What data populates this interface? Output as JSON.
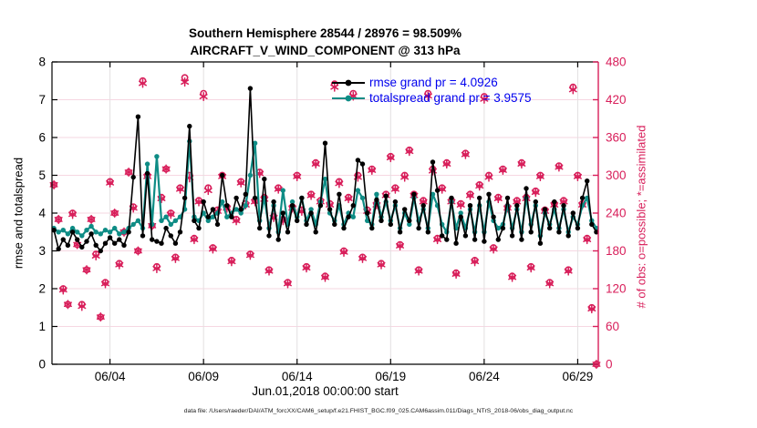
{
  "figure": {
    "title_line1": "Southern Hemisphere 28544 / 28976 = 98.509%",
    "title_line2": "AIRCRAFT_V_WIND_COMPONENT @ 313 hPa",
    "xlabel": "Jun.01,2018 00:00:00 start",
    "ylabel_left": "rmse and totalspread",
    "ylabel_right": "# of obs: o=possible; *=assimilated",
    "footer": "data file: /Users/raeder/DAI/ATM_forcXX/CAM6_setup/f.e21.FHIST_BGC.f09_025.CAM6assim.011/Diags_NTrS_2018-06/obs_diag_output.nc",
    "legend": [
      {
        "label": "rmse grand pr = 4.0926",
        "color": "#000000"
      },
      {
        "label": "totalspread grand pr = 3.9575",
        "color": "#0e8c85"
      }
    ],
    "colors": {
      "rmse": "#000000",
      "totalspread": "#0e8c85",
      "obs": "#d81e5a",
      "legend_text": "#0000ee",
      "grid_horizontal": "#f6d7e2",
      "grid_vertical": "#e3e0e1",
      "axis_left": "#000000",
      "axis_right": "#d81e5a"
    }
  },
  "chart_data": {
    "type": "line",
    "title": "Southern Hemisphere 28544 / 28976 = 98.509% | AIRCRAFT_V_WIND_COMPONENT @ 313 hPa",
    "xlabel": "Jun.01,2018 00:00:00 start",
    "ylabel_left": "rmse and totalspread",
    "ylabel_right": "# of obs: o=possible; *=assimilated",
    "grid": true,
    "legend_position": "top-right-inside",
    "time_days_start": 0,
    "time_days_step": 0.25,
    "xlim_days": [
      -0.1,
      29.1
    ],
    "x_tick_days": [
      3,
      8,
      13,
      18,
      23,
      28
    ],
    "x_tick_labels": [
      "06/04",
      "06/09",
      "06/14",
      "06/19",
      "06/24",
      "06/29"
    ],
    "ylim_left": [
      0,
      8
    ],
    "yticks_left": [
      0,
      1,
      2,
      3,
      4,
      5,
      6,
      7,
      8
    ],
    "ylim_right": [
      0,
      480
    ],
    "yticks_right": [
      0,
      60,
      120,
      180,
      240,
      300,
      360,
      420,
      480
    ],
    "series": [
      {
        "name": "rmse",
        "axis": "left",
        "style": "line",
        "marker": "filled-circle",
        "color": "#000000",
        "grand_pr": 4.0926,
        "values": [
          3.55,
          3.05,
          3.3,
          3.15,
          3.5,
          3.3,
          3.1,
          3.25,
          3.45,
          3.15,
          3.0,
          3.2,
          3.35,
          3.2,
          3.3,
          3.15,
          3.5,
          4.95,
          6.55,
          3.4,
          5.05,
          3.3,
          3.25,
          3.2,
          3.6,
          3.4,
          3.2,
          3.5,
          4.4,
          6.3,
          3.8,
          3.6,
          4.3,
          3.9,
          4.1,
          3.7,
          5.0,
          4.2,
          3.9,
          4.4,
          4.1,
          4.5,
          7.3,
          4.4,
          3.6,
          4.9,
          3.4,
          4.3,
          3.3,
          4.0,
          3.5,
          4.2,
          3.8,
          4.4,
          3.7,
          4.0,
          3.5,
          4.2,
          5.85,
          4.1,
          3.7,
          4.5,
          3.6,
          3.9,
          4.2,
          5.4,
          5.3,
          4.0,
          3.6,
          4.35,
          3.8,
          4.45,
          3.7,
          4.3,
          3.5,
          4.1,
          3.8,
          4.5,
          3.6,
          4.2,
          3.5,
          5.35,
          4.6,
          3.4,
          3.3,
          4.4,
          3.2,
          3.9,
          3.4,
          4.2,
          3.3,
          4.4,
          3.25,
          4.5,
          3.9,
          3.3,
          3.6,
          4.4,
          3.4,
          4.2,
          3.3,
          4.65,
          3.5,
          4.3,
          3.2,
          4.1,
          3.6,
          4.3,
          3.5,
          4.2,
          3.4,
          4.0,
          3.6,
          4.4,
          4.85,
          3.7,
          3.5
        ]
      },
      {
        "name": "totalspread",
        "axis": "left",
        "style": "line",
        "marker": "filled-circle",
        "color": "#0e8c85",
        "grand_pr": 3.9575,
        "values": [
          3.6,
          3.5,
          3.55,
          3.45,
          3.6,
          3.5,
          3.4,
          3.55,
          3.65,
          3.5,
          3.45,
          3.55,
          3.5,
          3.6,
          3.45,
          3.5,
          3.6,
          3.7,
          3.8,
          3.6,
          5.3,
          3.7,
          5.5,
          3.8,
          3.9,
          3.7,
          3.8,
          3.9,
          4.1,
          5.9,
          3.9,
          3.8,
          4.0,
          3.8,
          3.9,
          4.0,
          4.3,
          3.9,
          4.0,
          4.1,
          4.0,
          4.2,
          5.0,
          5.85,
          3.8,
          4.4,
          3.6,
          4.2,
          3.5,
          4.6,
          3.7,
          4.3,
          3.9,
          4.4,
          3.8,
          4.1,
          3.7,
          4.3,
          4.9,
          4.0,
          3.8,
          4.2,
          3.7,
          4.0,
          3.9,
          4.6,
          4.4,
          3.8,
          3.7,
          4.5,
          3.9,
          4.3,
          3.8,
          4.2,
          3.6,
          4.0,
          3.7,
          4.4,
          3.8,
          4.1,
          3.6,
          4.5,
          4.2,
          3.7,
          3.5,
          4.3,
          3.6,
          4.0,
          3.6,
          4.1,
          3.5,
          4.2,
          3.5,
          4.3,
          3.8,
          3.6,
          3.7,
          4.2,
          3.6,
          4.1,
          3.5,
          4.4,
          3.7,
          4.2,
          3.4,
          4.0,
          3.7,
          4.1,
          3.6,
          4.1,
          3.5,
          3.9,
          3.7,
          4.2,
          4.4,
          3.8,
          3.6
        ]
      },
      {
        "name": "possible",
        "axis": "right",
        "style": "scatter",
        "marker": "open-circle",
        "color": "#d81e5a",
        "values": [
          285,
          230,
          120,
          95,
          240,
          190,
          95,
          150,
          230,
          175,
          75,
          130,
          290,
          240,
          160,
          210,
          305,
          250,
          180,
          450,
          300,
          220,
          155,
          265,
          310,
          240,
          170,
          280,
          455,
          300,
          200,
          260,
          430,
          280,
          185,
          245,
          300,
          250,
          165,
          230,
          290,
          255,
          175,
          260,
          305,
          265,
          150,
          235,
          280,
          230,
          130,
          250,
          300,
          245,
          155,
          270,
          320,
          260,
          140,
          255,
          445,
          290,
          180,
          265,
          430,
          300,
          170,
          245,
          310,
          255,
          160,
          270,
          330,
          280,
          190,
          300,
          340,
          270,
          150,
          260,
          430,
          310,
          200,
          280,
          320,
          260,
          145,
          255,
          335,
          270,
          165,
          285,
          425,
          300,
          185,
          265,
          310,
          250,
          140,
          260,
          320,
          265,
          155,
          275,
          300,
          245,
          130,
          255,
          315,
          260,
          150,
          440,
          300,
          255,
          200,
          90,
          0
        ]
      },
      {
        "name": "assimilated",
        "axis": "right",
        "style": "scatter",
        "marker": "asterisk",
        "color": "#d81e5a",
        "values": [
          285,
          230,
          118,
          95,
          238,
          190,
          92,
          150,
          230,
          172,
          75,
          128,
          288,
          240,
          158,
          210,
          305,
          248,
          180,
          446,
          298,
          220,
          152,
          263,
          310,
          238,
          168,
          278,
          448,
          296,
          198,
          258,
          425,
          276,
          183,
          243,
          298,
          248,
          163,
          228,
          288,
          253,
          173,
          258,
          303,
          262,
          148,
          233,
          278,
          228,
          128,
          248,
          298,
          243,
          153,
          268,
          318,
          258,
          138,
          253,
          440,
          287,
          178,
          263,
          426,
          297,
          168,
          243,
          308,
          253,
          158,
          268,
          328,
          278,
          188,
          297,
          338,
          268,
          148,
          258,
          426,
          307,
          198,
          278,
          318,
          258,
          143,
          253,
          333,
          268,
          163,
          283,
          421,
          297,
          183,
          263,
          308,
          248,
          138,
          258,
          318,
          263,
          153,
          273,
          298,
          243,
          128,
          253,
          313,
          258,
          148,
          436,
          298,
          253,
          198,
          88,
          0
        ]
      }
    ]
  }
}
